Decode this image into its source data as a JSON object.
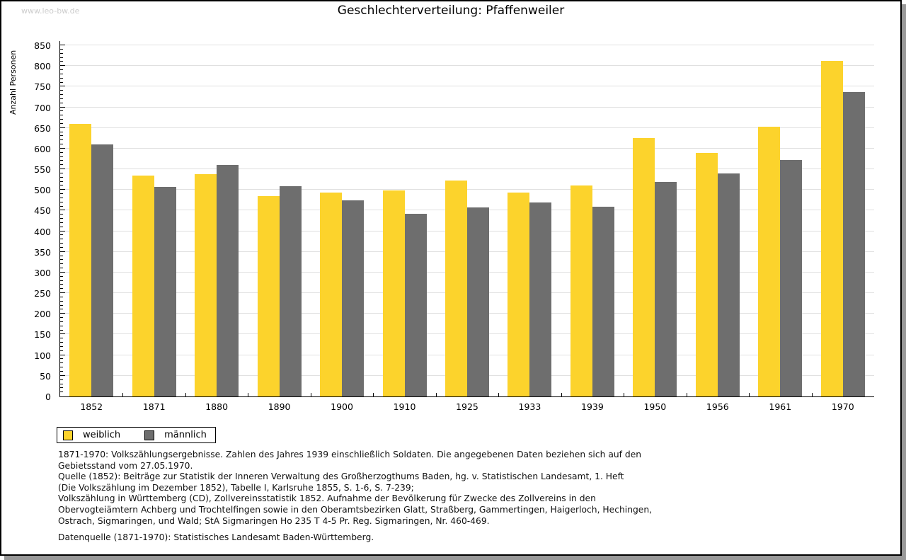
{
  "page": {
    "watermark": "www.leo-bw.de",
    "title": "Geschlechterverteilung: Pfaffenweiler"
  },
  "colors": {
    "weiblich": "#fcd32c",
    "maennlich": "#6e6e6e",
    "grid": "#e0e0e0",
    "axis": "#000000",
    "watermark": "#cccccc"
  },
  "chart_data": {
    "type": "bar",
    "title": "Geschlechterverteilung: Pfaffenweiler",
    "xlabel": "",
    "ylabel": "Anzahl Personen",
    "categories": [
      "1852",
      "1871",
      "1880",
      "1890",
      "1900",
      "1910",
      "1925",
      "1933",
      "1939",
      "1950",
      "1956",
      "1961",
      "1970"
    ],
    "series": [
      {
        "name": "weiblich",
        "color": "#fcd32c",
        "values": [
          660,
          534,
          538,
          485,
          493,
          498,
          523,
          494,
          510,
          625,
          590,
          653,
          812
        ]
      },
      {
        "name": "männlich",
        "color": "#6e6e6e",
        "values": [
          610,
          507,
          560,
          509,
          475,
          443,
          457,
          469,
          460,
          520,
          540,
          573,
          737
        ]
      }
    ],
    "ylim": [
      0,
      850
    ],
    "ytick_step": 50,
    "minor_tick_step": 10,
    "grid": true,
    "legend_position": "bottom-left"
  },
  "legend": {
    "items": [
      {
        "label": "weiblich"
      },
      {
        "label": "männlich"
      }
    ]
  },
  "footer": {
    "lines": [
      "1871-1970: Volkszählungsergebnisse. Zahlen des Jahres 1939 einschließlich Soldaten. Die angegebenen Daten beziehen sich auf den",
      "Gebietsstand vom 27.05.1970.",
      "Quelle (1852): Beiträge zur Statistik der Inneren Verwaltung des Großherzogthums Baden, hg. v. Statistischen Landesamt, 1. Heft",
      "(Die Volkszählung im Dezember 1852), Tabelle I, Karlsruhe 1855, S. 1-6, S. 7-239;",
      "Volkszählung in Württemberg (CD), Zollvereinsstatistik 1852. Aufnahme der Bevölkerung für Zwecke des Zollvereins in den",
      "Obervogteiämtern Achberg und Trochtelfingen sowie in den Oberamtsbezirken Glatt, Straßberg, Gammertingen, Haigerloch, Hechingen,",
      "Ostrach, Sigmaringen, und Wald; StA Sigmaringen Ho 235 T 4-5 Pr. Reg. Sigmaringen, Nr. 460-469."
    ],
    "datasource": "Datenquelle (1871-1970): Statistisches Landesamt Baden-Württemberg."
  }
}
